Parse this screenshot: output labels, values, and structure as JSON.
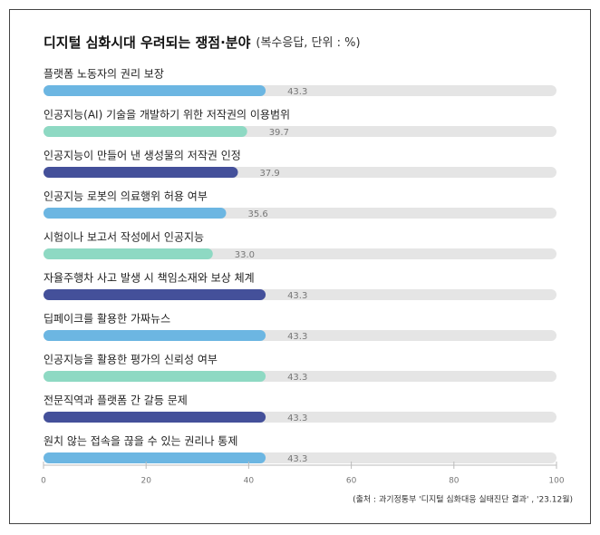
{
  "chart_data": {
    "type": "bar",
    "orientation": "horizontal",
    "title": "디지털 심화시대 우려되는 쟁점·분야",
    "subtitle": "(복수응답, 단위 : %)",
    "categories": [
      "플랫폼 노동자의 권리 보장",
      "인공지능(AI) 기술을 개발하기 위한 저작권의 이용범위",
      "인공지능이 만들어 낸 생성물의 저작권 인정",
      "인공지능 로봇의 의료행위 허용 여부",
      "시험이나 보고서 작성에서 인공지능",
      "자율주행차 사고 발생 시 책임소재와 보상 체계",
      "딥페이크를 활용한 가짜뉴스",
      "인공지능을 활용한 평가의 신뢰성 여부",
      "전문직역과 플랫폼 간 갈등 문제",
      "원치 않는 접속을 끊을 수 있는 권리나 통제"
    ],
    "values": [
      43.3,
      39.7,
      37.9,
      35.6,
      33.0,
      43.3,
      43.3,
      43.3,
      43.3,
      43.3
    ],
    "value_labels": [
      "43.3",
      "39.7",
      "37.9",
      "35.6",
      "33.0",
      "43.3",
      "43.3",
      "43.3",
      "43.3",
      "43.3"
    ],
    "colors": [
      "#6cb6e2",
      "#8ed9c3",
      "#44509a",
      "#6cb6e2",
      "#8ed9c3",
      "#44509a",
      "#6cb6e2",
      "#8ed9c3",
      "#44509a",
      "#6cb6e2"
    ],
    "xlim": [
      0,
      100
    ],
    "xticks": [
      0,
      20,
      40,
      60,
      80,
      100
    ],
    "source": "(출처 : 과기정통부 '디지털 심화대응 실태진단 결과' , '23.12월)"
  }
}
